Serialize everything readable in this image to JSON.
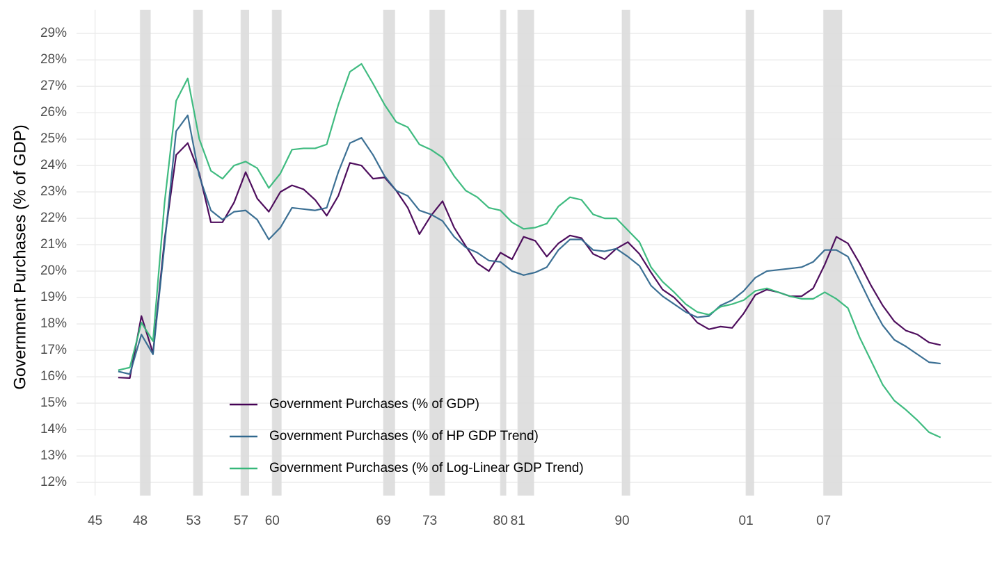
{
  "chart_data": {
    "type": "line",
    "y_label": "Government Purchases (% of GDP)",
    "x": [
      1947,
      1948,
      1949,
      1950,
      1951,
      1952,
      1953,
      1954,
      1955,
      1956,
      1957,
      1958,
      1959,
      1960,
      1961,
      1962,
      1963,
      1964,
      1965,
      1966,
      1967,
      1968,
      1969,
      1970,
      1971,
      1972,
      1973,
      1974,
      1975,
      1976,
      1977,
      1978,
      1979,
      1980,
      1981,
      1982,
      1983,
      1984,
      1985,
      1986,
      1987,
      1988,
      1989,
      1990,
      1991,
      1992,
      1993,
      1994,
      1995,
      1996,
      1997,
      1998,
      1999,
      2000,
      2001,
      2002,
      2003,
      2004,
      2005,
      2006,
      2007,
      2008,
      2009,
      2010,
      2011,
      2012,
      2013,
      2014,
      2015,
      2016,
      2017,
      2018
    ],
    "series": [
      {
        "name": "Government Purchases (% of GDP)",
        "color": "#440154",
        "values": [
          15.97,
          15.95,
          18.3,
          16.9,
          21.2,
          24.4,
          24.85,
          23.7,
          21.85,
          21.85,
          22.6,
          23.75,
          22.75,
          22.25,
          23.0,
          23.25,
          23.1,
          22.7,
          22.1,
          22.85,
          24.1,
          24.0,
          23.5,
          23.55,
          23.05,
          22.4,
          21.4,
          22.1,
          22.65,
          21.65,
          20.95,
          20.3,
          20.0,
          20.7,
          20.45,
          21.3,
          21.15,
          20.55,
          21.05,
          21.35,
          21.25,
          20.65,
          20.45,
          20.85,
          21.1,
          20.65,
          19.95,
          19.3,
          19.0,
          18.55,
          18.05,
          17.8,
          17.9,
          17.85,
          18.4,
          19.1,
          19.3,
          19.2,
          19.05,
          19.05,
          19.35,
          20.25,
          21.3,
          21.05,
          20.3,
          19.45,
          18.7,
          18.1,
          17.75,
          17.6,
          17.3,
          17.2
        ]
      },
      {
        "name": "Government Purchases (% of HP GDP Trend)",
        "color": "#31688e",
        "values": [
          16.2,
          16.1,
          17.6,
          16.85,
          21.0,
          25.3,
          25.9,
          23.6,
          22.3,
          21.95,
          22.25,
          22.3,
          21.95,
          21.2,
          21.65,
          22.4,
          22.35,
          22.3,
          22.4,
          23.75,
          24.85,
          25.05,
          24.4,
          23.6,
          23.05,
          22.85,
          22.3,
          22.15,
          21.9,
          21.3,
          20.9,
          20.7,
          20.4,
          20.35,
          20.0,
          19.85,
          19.95,
          20.15,
          20.8,
          21.2,
          21.2,
          20.8,
          20.75,
          20.85,
          20.55,
          20.2,
          19.45,
          19.05,
          18.75,
          18.45,
          18.25,
          18.3,
          18.7,
          18.9,
          19.25,
          19.75,
          20.0,
          20.05,
          20.1,
          20.15,
          20.35,
          20.8,
          20.8,
          20.55,
          19.65,
          18.75,
          17.95,
          17.4,
          17.15,
          16.85,
          16.55,
          16.5
        ]
      },
      {
        "name": "Government Purchases (% of Log-Linear GDP Trend)",
        "color": "#35b779",
        "values": [
          16.25,
          16.35,
          18.05,
          17.35,
          22.6,
          26.45,
          27.3,
          25.0,
          23.8,
          23.5,
          24.0,
          24.15,
          23.9,
          23.15,
          23.7,
          24.6,
          24.65,
          24.65,
          24.8,
          26.3,
          27.55,
          27.85,
          27.1,
          26.3,
          25.65,
          25.45,
          24.8,
          24.6,
          24.3,
          23.6,
          23.05,
          22.8,
          22.4,
          22.3,
          21.85,
          21.6,
          21.65,
          21.8,
          22.45,
          22.8,
          22.7,
          22.15,
          22.0,
          22.0,
          21.55,
          21.1,
          20.15,
          19.6,
          19.2,
          18.75,
          18.45,
          18.35,
          18.65,
          18.75,
          18.9,
          19.25,
          19.35,
          19.2,
          19.05,
          18.95,
          18.95,
          19.2,
          18.95,
          18.6,
          17.5,
          16.6,
          15.7,
          15.1,
          14.75,
          14.35,
          13.9,
          13.7
        ]
      }
    ],
    "recessions": [
      [
        1948.9,
        1949.8
      ],
      [
        1953.5,
        1954.3
      ],
      [
        1957.6,
        1958.3
      ],
      [
        1960.3,
        1961.1
      ],
      [
        1969.9,
        1970.9
      ],
      [
        1973.9,
        1975.2
      ],
      [
        1980.0,
        1980.5
      ],
      [
        1981.5,
        1982.9
      ],
      [
        1990.5,
        1991.2
      ],
      [
        2001.2,
        2001.9
      ],
      [
        2007.9,
        2009.5
      ]
    ],
    "recession_color": "#dddddd",
    "xlim": [
      1943.4,
      2022.4
    ],
    "xticks": [
      {
        "value": 1945,
        "label": "45"
      },
      {
        "value": 1948.9,
        "label": "48"
      },
      {
        "value": 1953.5,
        "label": "53"
      },
      {
        "value": 1957.6,
        "label": "57"
      },
      {
        "value": 1960.3,
        "label": "60"
      },
      {
        "value": 1969.9,
        "label": "69"
      },
      {
        "value": 1973.9,
        "label": "73"
      },
      {
        "value": 1980.0,
        "label": "80"
      },
      {
        "value": 1981.5,
        "label": "81"
      },
      {
        "value": 1990.5,
        "label": "90"
      },
      {
        "value": 2001.2,
        "label": "01"
      },
      {
        "value": 2007.9,
        "label": "07"
      }
    ],
    "ylim": [
      11.5,
      29.9
    ],
    "yticks": [
      {
        "value": 12,
        "label": "12%"
      },
      {
        "value": 13,
        "label": "13%"
      },
      {
        "value": 14,
        "label": "14%"
      },
      {
        "value": 15,
        "label": "15%"
      },
      {
        "value": 16,
        "label": "16%"
      },
      {
        "value": 17,
        "label": "17%"
      },
      {
        "value": 18,
        "label": "18%"
      },
      {
        "value": 19,
        "label": "19%"
      },
      {
        "value": 20,
        "label": "20%"
      },
      {
        "value": 21,
        "label": "21%"
      },
      {
        "value": 22,
        "label": "22%"
      },
      {
        "value": 23,
        "label": "23%"
      },
      {
        "value": 24,
        "label": "24%"
      },
      {
        "value": 25,
        "label": "25%"
      },
      {
        "value": 26,
        "label": "26%"
      },
      {
        "value": 27,
        "label": "27%"
      },
      {
        "value": 28,
        "label": "28%"
      },
      {
        "value": 29,
        "label": "29%"
      }
    ],
    "grid": true,
    "legend": "bottom"
  }
}
